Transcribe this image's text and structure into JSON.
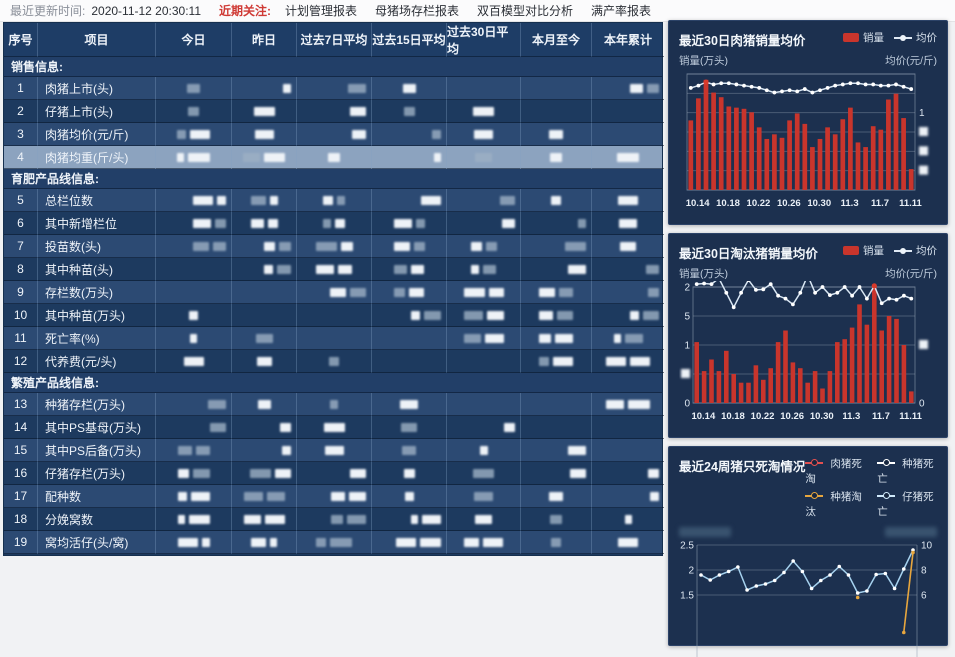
{
  "topbar": {
    "update_label": "最近更新时间:",
    "update_time": "2020-11-12 20:30:11",
    "focus_label": "近期关注:",
    "links": [
      "计划管理报表",
      "母猪场存栏报表",
      "双百模型对比分析",
      "满产率报表"
    ]
  },
  "table": {
    "columns": [
      "序号",
      "项目",
      "今日",
      "昨日",
      "过去7日平均",
      "过去15日平均",
      "过去30日平均",
      "本月至今",
      "本年累计"
    ],
    "selected_no": "4",
    "values_redacted": true,
    "sections": [
      {
        "title": "销售信息:",
        "rows": [
          {
            "no": "1",
            "label": "肉猪上市(头)"
          },
          {
            "no": "2",
            "label": "仔猪上市(头)"
          },
          {
            "no": "3",
            "label": "肉猪均价(元/斤)"
          },
          {
            "no": "4",
            "label": "肉猪均重(斤/头)"
          }
        ]
      },
      {
        "title": "育肥产品线信息:",
        "rows": [
          {
            "no": "5",
            "label": "总栏位数"
          },
          {
            "no": "6",
            "label": "其中新增栏位"
          },
          {
            "no": "7",
            "label": "投苗数(头)"
          },
          {
            "no": "8",
            "label": "其中种苗(头)"
          },
          {
            "no": "9",
            "label": "存栏数(万头)"
          },
          {
            "no": "10",
            "label": "其中种苗(万头)"
          },
          {
            "no": "11",
            "label": "死亡率(%)"
          },
          {
            "no": "12",
            "label": "代养费(元/头)"
          }
        ]
      },
      {
        "title": "繁殖产品线信息:",
        "rows": [
          {
            "no": "13",
            "label": "种猪存栏(万头)"
          },
          {
            "no": "14",
            "label": "其中PS基母(万头)"
          },
          {
            "no": "15",
            "label": "其中PS后备(万头)"
          },
          {
            "no": "16",
            "label": "仔猪存栏(万头)"
          },
          {
            "no": "17",
            "label": "配种数"
          },
          {
            "no": "18",
            "label": "分娩窝数"
          },
          {
            "no": "19",
            "label": "窝均活仔(头/窝)"
          }
        ]
      }
    ]
  },
  "colors": {
    "bar_red": "#c9352c",
    "avg_line": "#d9e7f4",
    "highlight_dot": "#d93a2b",
    "pig_death": "#e25050",
    "sow_death": "#ffffff",
    "sow_cull": "#e7a63e",
    "piglet_death": "#a6d2ef",
    "selected_row": "#8ca3bf"
  },
  "chart_data": [
    {
      "type": "bar",
      "title": "最近30日肉猪销量均价",
      "legend": [
        "销量",
        "均价"
      ],
      "ylabel_left": "销量(万头)",
      "ylabel_right": "均价(元/斤)",
      "x_tick_labels": [
        "10.14",
        "10.18",
        "10.22",
        "10.26",
        "10.30",
        "11.3",
        "11.7",
        "11.11"
      ],
      "ylim_pct": [
        0,
        100
      ],
      "grid_count": 7,
      "left_ticks": [
        "",
        "",
        "",
        "",
        "",
        "",
        ""
      ],
      "right_ticks": [
        "",
        "",
        "1",
        "blur",
        "blur",
        "blur",
        ""
      ],
      "bars_pct": [
        60,
        79,
        95,
        84,
        80,
        72,
        71,
        70,
        67,
        54,
        44,
        48,
        45,
        60,
        66,
        57,
        37,
        44,
        54,
        48,
        61,
        71,
        41,
        37,
        55,
        52,
        78,
        83,
        62,
        18
      ],
      "line_pct": [
        88,
        90,
        93,
        91,
        92,
        92,
        91,
        90,
        89,
        88,
        86,
        84,
        85,
        86,
        85,
        87,
        84,
        86,
        88,
        90,
        91,
        92,
        92,
        91,
        91,
        90,
        90,
        91,
        89,
        87
      ],
      "line_highlight_index": 2
    },
    {
      "type": "bar",
      "title": "最近30日淘汰猪销量均价",
      "legend": [
        "销量",
        "均价"
      ],
      "ylabel_left": "销量(万头)",
      "ylabel_right": "均价(元/斤)",
      "x_tick_labels": [
        "10.14",
        "10.18",
        "10.22",
        "10.26",
        "10.30",
        "11.3",
        "11.7",
        "11.11"
      ],
      "ylim": [
        0,
        2
      ],
      "grid_count": 5,
      "left_ticks": [
        "2",
        "5",
        "1",
        "blur",
        "0"
      ],
      "right_ticks": [
        "",
        "",
        "blur",
        "",
        "0"
      ],
      "bars": [
        1.05,
        0.55,
        0.75,
        0.55,
        0.9,
        0.5,
        0.35,
        0.35,
        0.65,
        0.4,
        0.6,
        1.05,
        1.25,
        0.7,
        0.6,
        0.35,
        0.55,
        0.25,
        0.55,
        1.05,
        1.1,
        1.3,
        1.7,
        1.35,
        2.0,
        1.25,
        1.5,
        1.45,
        1.0,
        0.2
      ],
      "line": [
        2.05,
        2.06,
        2.05,
        2.15,
        1.9,
        1.65,
        1.9,
        2.12,
        1.95,
        1.96,
        2.05,
        1.85,
        1.8,
        1.7,
        1.9,
        2.2,
        1.9,
        2.0,
        1.86,
        1.9,
        2.0,
        1.85,
        2.0,
        1.8,
        2.02,
        1.72,
        1.8,
        1.78,
        1.85,
        1.8
      ],
      "line_highlight_index": 24
    },
    {
      "type": "line",
      "title": "最近24周猪只死淘情况",
      "legend": [
        "肉猪死淘",
        "种猪死亡",
        "种猪淘汰",
        "仔猪死亡"
      ],
      "left_ticks": [
        "2.5",
        "2",
        "1.5"
      ],
      "right_ticks": [
        "10",
        "8",
        "6"
      ],
      "left_ylim_visible": [
        1.5,
        2.5
      ],
      "right_ylim_visible": [
        6,
        10
      ],
      "series": [
        {
          "name": "仔猪死亡",
          "values": [
            1.9,
            1.8,
            1.9,
            1.97,
            2.06,
            1.6,
            1.68,
            1.72,
            1.79,
            1.95,
            2.18,
            1.97,
            1.63,
            1.79,
            1.9,
            2.07,
            1.9,
            1.54,
            1.58,
            1.91,
            1.93,
            1.63,
            2.02,
            2.4
          ]
        },
        {
          "name": "种猪淘汰",
          "axis": "right",
          "values": [
            null,
            null,
            null,
            null,
            null,
            null,
            null,
            null,
            null,
            null,
            null,
            null,
            null,
            null,
            null,
            null,
            null,
            5.8,
            null,
            null,
            null,
            null,
            3.0,
            9.4
          ]
        }
      ]
    }
  ]
}
